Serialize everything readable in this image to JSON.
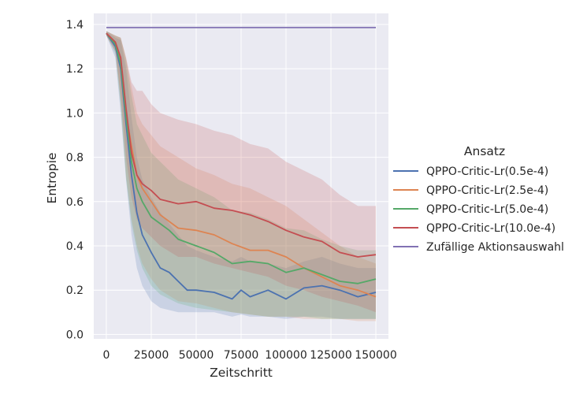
{
  "chart_data": {
    "type": "line",
    "xlabel": "Zeitschritt",
    "ylabel": "Entropie",
    "xlim": [
      -7000,
      157000
    ],
    "ylim": [
      -0.02,
      1.45
    ],
    "xticks": [
      0,
      25000,
      50000,
      75000,
      100000,
      125000,
      150000
    ],
    "xtick_labels": [
      "0",
      "25000",
      "50000",
      "75000",
      "100000",
      "125000",
      "150000"
    ],
    "yticks": [
      0.0,
      0.2,
      0.4,
      0.6,
      0.8,
      1.0,
      1.2,
      1.4
    ],
    "ytick_labels": [
      "0.0",
      "0.2",
      "0.4",
      "0.6",
      "0.8",
      "1.0",
      "1.2",
      "1.4"
    ],
    "grid": true,
    "legend_title": "Ansatz",
    "legend_position": "right, outside plot",
    "colors": {
      "background": "#eaeaf2",
      "grid": "#ffffff"
    },
    "series": [
      {
        "name": "QPPO-Critic-Lr(0.5e-4)",
        "color": "#4c72b0",
        "x": [
          0,
          5000,
          8000,
          11000,
          14000,
          17000,
          20000,
          25000,
          30000,
          35000,
          40000,
          45000,
          50000,
          60000,
          70000,
          75000,
          80000,
          90000,
          100000,
          110000,
          120000,
          130000,
          140000,
          150000
        ],
        "y": [
          1.36,
          1.3,
          1.2,
          0.95,
          0.72,
          0.55,
          0.45,
          0.37,
          0.3,
          0.28,
          0.24,
          0.2,
          0.2,
          0.19,
          0.16,
          0.2,
          0.17,
          0.2,
          0.16,
          0.21,
          0.22,
          0.2,
          0.17,
          0.19
        ],
        "lower": [
          1.35,
          1.25,
          1.0,
          0.7,
          0.45,
          0.3,
          0.22,
          0.15,
          0.12,
          0.11,
          0.1,
          0.1,
          0.1,
          0.1,
          0.08,
          0.09,
          0.08,
          0.08,
          0.07,
          0.08,
          0.08,
          0.07,
          0.07,
          0.07
        ],
        "upper": [
          1.37,
          1.34,
          1.33,
          1.2,
          0.98,
          0.8,
          0.7,
          0.62,
          0.55,
          0.5,
          0.45,
          0.4,
          0.38,
          0.35,
          0.33,
          0.35,
          0.33,
          0.32,
          0.3,
          0.33,
          0.35,
          0.32,
          0.3,
          0.3
        ]
      },
      {
        "name": "QPPO-Critic-Lr(2.5e-4)",
        "color": "#dd8452",
        "x": [
          0,
          5000,
          8000,
          11000,
          14000,
          17000,
          20000,
          25000,
          30000,
          40000,
          50000,
          60000,
          70000,
          80000,
          90000,
          100000,
          110000,
          120000,
          130000,
          140000,
          150000
        ],
        "y": [
          1.36,
          1.32,
          1.24,
          1.0,
          0.85,
          0.72,
          0.66,
          0.6,
          0.54,
          0.48,
          0.47,
          0.45,
          0.41,
          0.38,
          0.38,
          0.35,
          0.3,
          0.26,
          0.22,
          0.2,
          0.17
        ],
        "lower": [
          1.35,
          1.28,
          1.05,
          0.72,
          0.52,
          0.4,
          0.32,
          0.25,
          0.2,
          0.15,
          0.14,
          0.12,
          0.1,
          0.09,
          0.08,
          0.08,
          0.07,
          0.07,
          0.07,
          0.06,
          0.06
        ],
        "upper": [
          1.37,
          1.35,
          1.34,
          1.25,
          1.12,
          1.0,
          0.95,
          0.9,
          0.85,
          0.8,
          0.75,
          0.72,
          0.68,
          0.66,
          0.62,
          0.58,
          0.52,
          0.46,
          0.4,
          0.35,
          0.32
        ]
      },
      {
        "name": "QPPO-Critic-Lr(5.0e-4)",
        "color": "#55a868",
        "x": [
          0,
          5000,
          8000,
          11000,
          14000,
          17000,
          20000,
          25000,
          30000,
          35000,
          40000,
          50000,
          60000,
          70000,
          80000,
          90000,
          100000,
          110000,
          120000,
          130000,
          140000,
          150000
        ],
        "y": [
          1.36,
          1.31,
          1.22,
          0.98,
          0.78,
          0.66,
          0.6,
          0.53,
          0.5,
          0.47,
          0.43,
          0.4,
          0.37,
          0.32,
          0.33,
          0.32,
          0.28,
          0.3,
          0.27,
          0.24,
          0.23,
          0.25
        ],
        "lower": [
          1.35,
          1.27,
          1.03,
          0.7,
          0.5,
          0.38,
          0.3,
          0.22,
          0.18,
          0.16,
          0.14,
          0.12,
          0.11,
          0.1,
          0.09,
          0.08,
          0.08,
          0.08,
          0.07,
          0.07,
          0.07,
          0.07
        ],
        "upper": [
          1.37,
          1.35,
          1.34,
          1.24,
          1.08,
          0.95,
          0.9,
          0.82,
          0.78,
          0.74,
          0.7,
          0.66,
          0.62,
          0.56,
          0.55,
          0.52,
          0.48,
          0.47,
          0.43,
          0.4,
          0.38,
          0.38
        ]
      },
      {
        "name": "QPPO-Critic-Lr(10.0e-4)",
        "color": "#c44e52",
        "x": [
          0,
          5000,
          8000,
          11000,
          14000,
          17000,
          20000,
          25000,
          30000,
          40000,
          50000,
          60000,
          70000,
          80000,
          90000,
          100000,
          110000,
          120000,
          130000,
          140000,
          150000
        ],
        "y": [
          1.36,
          1.32,
          1.25,
          1.02,
          0.82,
          0.72,
          0.68,
          0.65,
          0.61,
          0.59,
          0.6,
          0.57,
          0.56,
          0.54,
          0.51,
          0.47,
          0.44,
          0.42,
          0.37,
          0.35,
          0.36
        ],
        "lower": [
          1.35,
          1.28,
          1.08,
          0.8,
          0.62,
          0.52,
          0.48,
          0.44,
          0.4,
          0.35,
          0.35,
          0.32,
          0.3,
          0.28,
          0.26,
          0.22,
          0.2,
          0.17,
          0.15,
          0.13,
          0.1
        ],
        "upper": [
          1.37,
          1.35,
          1.34,
          1.25,
          1.14,
          1.1,
          1.1,
          1.04,
          1.0,
          0.97,
          0.95,
          0.92,
          0.9,
          0.86,
          0.84,
          0.78,
          0.74,
          0.7,
          0.63,
          0.58,
          0.58
        ]
      },
      {
        "name": "Zufällige Aktionsauswahl",
        "color": "#8172b3",
        "x": [
          0,
          150000
        ],
        "y": [
          1.386,
          1.386
        ]
      }
    ]
  }
}
